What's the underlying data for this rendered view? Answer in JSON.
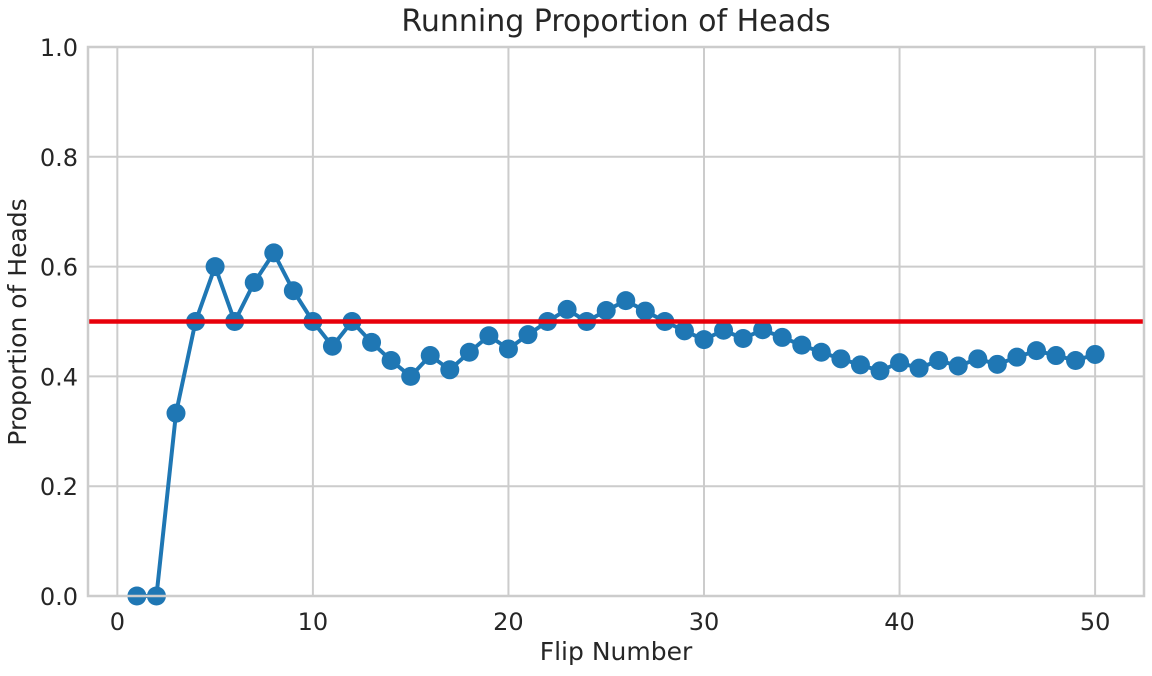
{
  "chart_data": {
    "type": "line",
    "title": "Running Proportion of Heads",
    "xlabel": "Flip Number",
    "ylabel": "Proportion of Heads",
    "xlim": [
      -1.5,
      52.5
    ],
    "ylim": [
      0.0,
      1.0
    ],
    "grid": true,
    "legend": "none",
    "x_ticks": [
      0,
      10,
      20,
      30,
      40,
      50
    ],
    "x_tick_labels": [
      "0",
      "10",
      "20",
      "30",
      "40",
      "50"
    ],
    "y_ticks": [
      0.0,
      0.2,
      0.4,
      0.6,
      0.8,
      1.0
    ],
    "y_tick_labels": [
      "0.0",
      "0.2",
      "0.4",
      "0.6",
      "0.8",
      "1.0"
    ],
    "series": [
      {
        "color": "#1f77b4",
        "marker": "circle",
        "x": [
          1,
          2,
          3,
          4,
          5,
          6,
          7,
          8,
          9,
          10,
          11,
          12,
          13,
          14,
          15,
          16,
          17,
          18,
          19,
          20,
          21,
          22,
          23,
          24,
          25,
          26,
          27,
          28,
          29,
          30,
          31,
          32,
          33,
          34,
          35,
          36,
          37,
          38,
          39,
          40,
          41,
          42,
          43,
          44,
          45,
          46,
          47,
          48,
          49,
          50
        ],
        "values": [
          0.0,
          0.0,
          0.333,
          0.5,
          0.6,
          0.5,
          0.571,
          0.625,
          0.556,
          0.5,
          0.455,
          0.5,
          0.462,
          0.429,
          0.4,
          0.438,
          0.412,
          0.444,
          0.474,
          0.45,
          0.476,
          0.5,
          0.522,
          0.5,
          0.52,
          0.538,
          0.519,
          0.5,
          0.483,
          0.467,
          0.484,
          0.469,
          0.485,
          0.471,
          0.457,
          0.444,
          0.432,
          0.421,
          0.41,
          0.425,
          0.415,
          0.429,
          0.419,
          0.432,
          0.422,
          0.435,
          0.447,
          0.438,
          0.429,
          0.44
        ]
      }
    ],
    "reference_line": {
      "y": 0.5,
      "color": "#e8000b"
    }
  }
}
